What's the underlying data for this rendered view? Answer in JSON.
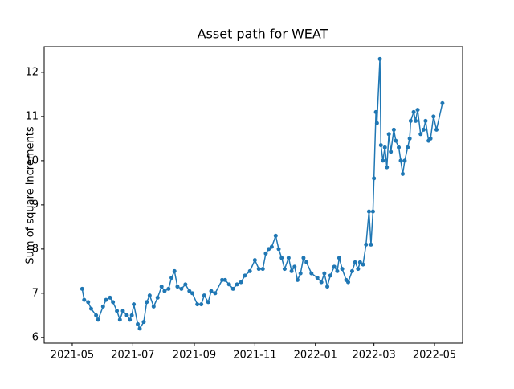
{
  "chart_data": {
    "type": "line",
    "title": "Asset path for WEAT",
    "y_label": "Sum of square increments",
    "color": "#1f77b4",
    "x": [
      18758,
      18760,
      18764,
      18767,
      18772,
      18774,
      18779,
      18782,
      18786,
      18789,
      18793,
      18796,
      18799,
      18803,
      18806,
      18808,
      18810,
      18814,
      18816,
      18820,
      18823,
      18826,
      18830,
      18834,
      18838,
      18841,
      18845,
      18848,
      18851,
      18854,
      18858,
      18862,
      18866,
      18869,
      18874,
      18878,
      18881,
      18885,
      18888,
      18892,
      18899,
      18902,
      18906,
      18910,
      18914,
      18918,
      18922,
      18927,
      18932,
      18936,
      18940,
      18943,
      18946,
      18949,
      18953,
      18956,
      18959,
      18962,
      18966,
      18969,
      18972,
      18975,
      18978,
      18981,
      18984,
      18989,
      18995,
      18999,
      19002,
      19005,
      19008,
      19012,
      19015,
      19017,
      19020,
      19024,
      19026,
      19030,
      19033,
      19036,
      19038,
      19041,
      19044,
      19047,
      19049,
      19051,
      19052,
      19054,
      19055,
      19058,
      19059,
      19061,
      19063,
      19065,
      19067,
      19069,
      19072,
      19074,
      19077,
      19079,
      19081,
      19083,
      19086,
      19088,
      19089,
      19092,
      19094,
      19096,
      19099,
      19102,
      19104,
      19107,
      19109,
      19112,
      19115,
      19121
    ],
    "values": [
      7.1,
      6.85,
      6.8,
      6.65,
      6.5,
      6.4,
      6.7,
      6.85,
      6.9,
      6.8,
      6.6,
      6.4,
      6.6,
      6.5,
      6.4,
      6.5,
      6.75,
      6.3,
      6.2,
      6.35,
      6.8,
      6.95,
      6.7,
      6.9,
      7.15,
      7.05,
      7.1,
      7.35,
      7.5,
      7.15,
      7.1,
      7.2,
      7.05,
      7.0,
      6.75,
      6.75,
      6.95,
      6.8,
      7.05,
      7.0,
      7.3,
      7.3,
      7.2,
      7.1,
      7.2,
      7.25,
      7.4,
      7.5,
      7.75,
      7.55,
      7.55,
      7.9,
      8.0,
      8.05,
      8.3,
      8.0,
      7.8,
      7.55,
      7.8,
      7.5,
      7.6,
      7.3,
      7.45,
      7.8,
      7.7,
      7.45,
      7.35,
      7.25,
      7.45,
      7.15,
      7.4,
      7.6,
      7.5,
      7.8,
      7.55,
      7.3,
      7.25,
      7.5,
      7.7,
      7.55,
      7.7,
      7.65,
      8.1,
      8.85,
      8.1,
      8.85,
      9.6,
      11.1,
      10.85,
      12.3,
      10.35,
      10.0,
      10.3,
      9.85,
      10.6,
      10.2,
      10.7,
      10.45,
      10.3,
      10.0,
      9.7,
      10.0,
      10.3,
      10.5,
      10.9,
      11.1,
      10.9,
      11.15,
      10.6,
      10.7,
      10.9,
      10.45,
      10.5,
      11.0,
      10.7,
      11.3
    ],
    "xlim": [
      18719.7,
      19141.3
    ],
    "xticks": [
      {
        "value": 18748,
        "label": "2021-05"
      },
      {
        "value": 18809,
        "label": "2021-07"
      },
      {
        "value": 18871,
        "label": "2021-09"
      },
      {
        "value": 18932,
        "label": "2021-11"
      },
      {
        "value": 18993,
        "label": "2022-01"
      },
      {
        "value": 19052,
        "label": "2022-03"
      },
      {
        "value": 19113,
        "label": "2022-05"
      }
    ],
    "ylim": [
      5.87,
      12.58
    ],
    "yticks": [
      6,
      7,
      8,
      9,
      10,
      11,
      12
    ]
  }
}
